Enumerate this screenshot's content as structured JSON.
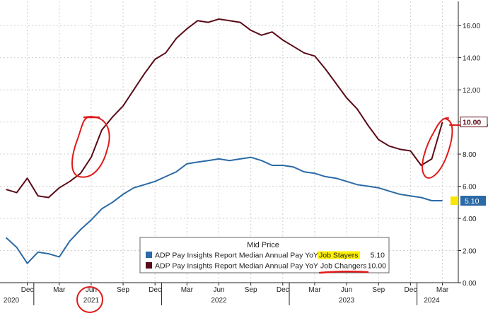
{
  "colors": {
    "background": "#ffffff",
    "grid": "#cfcfcf",
    "axis": "#222222",
    "job_stayers": "#2b6aa6",
    "job_changers": "#5a0b18",
    "annotation_red": "#e01a1a",
    "stayers_label_bg": "#2b6aa6",
    "stayers_marker": "#f6e600",
    "changers_label_bg": "#ffffff",
    "legend_highlight": "#fff100"
  },
  "chart_data": {
    "type": "line",
    "title": "",
    "xlabel": "",
    "ylabel": "",
    "ylim": [
      0,
      17.5
    ],
    "grid": true,
    "y_axis_side": "right",
    "y_ticks": [
      "0.00",
      "2.00",
      "4.00",
      "6.00",
      "8.00",
      "10.00",
      "12.00",
      "14.00",
      "16.00"
    ],
    "y_tick_values": [
      0,
      2,
      4,
      6,
      8,
      10,
      12,
      14,
      16
    ],
    "x_month_ticks": [
      {
        "label": "Dec",
        "x": "2020-12"
      },
      {
        "label": "Mar",
        "x": "2021-03"
      },
      {
        "label": "Jun",
        "x": "2021-06"
      },
      {
        "label": "Sep",
        "x": "2021-09"
      },
      {
        "label": "Dec",
        "x": "2021-12"
      },
      {
        "label": "Mar",
        "x": "2022-03"
      },
      {
        "label": "Jun",
        "x": "2022-06"
      },
      {
        "label": "Sep",
        "x": "2022-09"
      },
      {
        "label": "Dec",
        "x": "2022-12"
      },
      {
        "label": "Mar",
        "x": "2023-03"
      },
      {
        "label": "Jun",
        "x": "2023-06"
      },
      {
        "label": "Sep",
        "x": "2023-09"
      },
      {
        "label": "Dec",
        "x": "2023-12"
      },
      {
        "label": "Mar",
        "x": "2024-03"
      }
    ],
    "x_year_labels": [
      {
        "label": "2020",
        "x": "2020-10"
      },
      {
        "label": "2021",
        "x": "2021-06"
      },
      {
        "label": "2022",
        "x": "2022-06"
      },
      {
        "label": "2023",
        "x": "2023-06"
      },
      {
        "label": "2024",
        "x": "2024-02"
      }
    ],
    "x_year_separators": [
      "2020-12-20",
      "2021-12-20",
      "2022-12-20",
      "2023-12-20"
    ],
    "x": [
      "2020-10",
      "2020-11",
      "2020-12",
      "2021-01",
      "2021-02",
      "2021-03",
      "2021-04",
      "2021-05",
      "2021-06",
      "2021-07",
      "2021-08",
      "2021-09",
      "2021-10",
      "2021-11",
      "2021-12",
      "2022-01",
      "2022-02",
      "2022-03",
      "2022-04",
      "2022-05",
      "2022-06",
      "2022-07",
      "2022-08",
      "2022-09",
      "2022-10",
      "2022-11",
      "2022-12",
      "2023-01",
      "2023-02",
      "2023-03",
      "2023-04",
      "2023-05",
      "2023-06",
      "2023-07",
      "2023-08",
      "2023-09",
      "2023-10",
      "2023-11",
      "2023-12",
      "2024-01",
      "2024-02",
      "2024-03"
    ],
    "series": [
      {
        "name": "ADP Pay Insights Report Median Annual Pay YoY Job Stayers",
        "last_value": "5.10",
        "values": [
          2.8,
          2.2,
          1.2,
          1.9,
          1.8,
          1.6,
          2.6,
          3.3,
          3.9,
          4.6,
          5.0,
          5.5,
          5.9,
          6.1,
          6.3,
          6.6,
          6.9,
          7.4,
          7.5,
          7.6,
          7.7,
          7.6,
          7.7,
          7.8,
          7.6,
          7.3,
          7.3,
          7.2,
          6.9,
          6.8,
          6.6,
          6.5,
          6.3,
          6.1,
          6.0,
          5.9,
          5.7,
          5.5,
          5.4,
          5.3,
          5.1,
          5.1
        ]
      },
      {
        "name": "ADP Pay Insights Report Median Annual Pay YoY Job Changers",
        "last_value": "10.00",
        "values": [
          5.8,
          5.6,
          6.5,
          5.4,
          5.3,
          5.9,
          6.3,
          6.8,
          7.8,
          9.5,
          10.3,
          11.0,
          12.0,
          13.0,
          13.9,
          14.3,
          15.2,
          15.8,
          16.3,
          16.2,
          16.4,
          16.3,
          16.2,
          15.7,
          15.4,
          15.6,
          15.1,
          14.7,
          14.3,
          14.1,
          13.3,
          12.4,
          11.5,
          10.8,
          9.8,
          8.9,
          8.5,
          8.3,
          8.2,
          7.3,
          7.7,
          10.0
        ]
      }
    ],
    "legend": {
      "title": "Mid Price",
      "placement": "bottom-center",
      "entries": [
        {
          "text": "ADP Pay Insights Report Median Annual Pay YoY",
          "highlight": "Job Stayers",
          "value": "5.10"
        },
        {
          "text": "ADP Pay Insights Report Median Annual Pay YoY",
          "highlight": "Job Changers",
          "value": "10.00"
        }
      ]
    },
    "value_labels": {
      "stayers": "5.10",
      "changers": "10.00"
    }
  }
}
